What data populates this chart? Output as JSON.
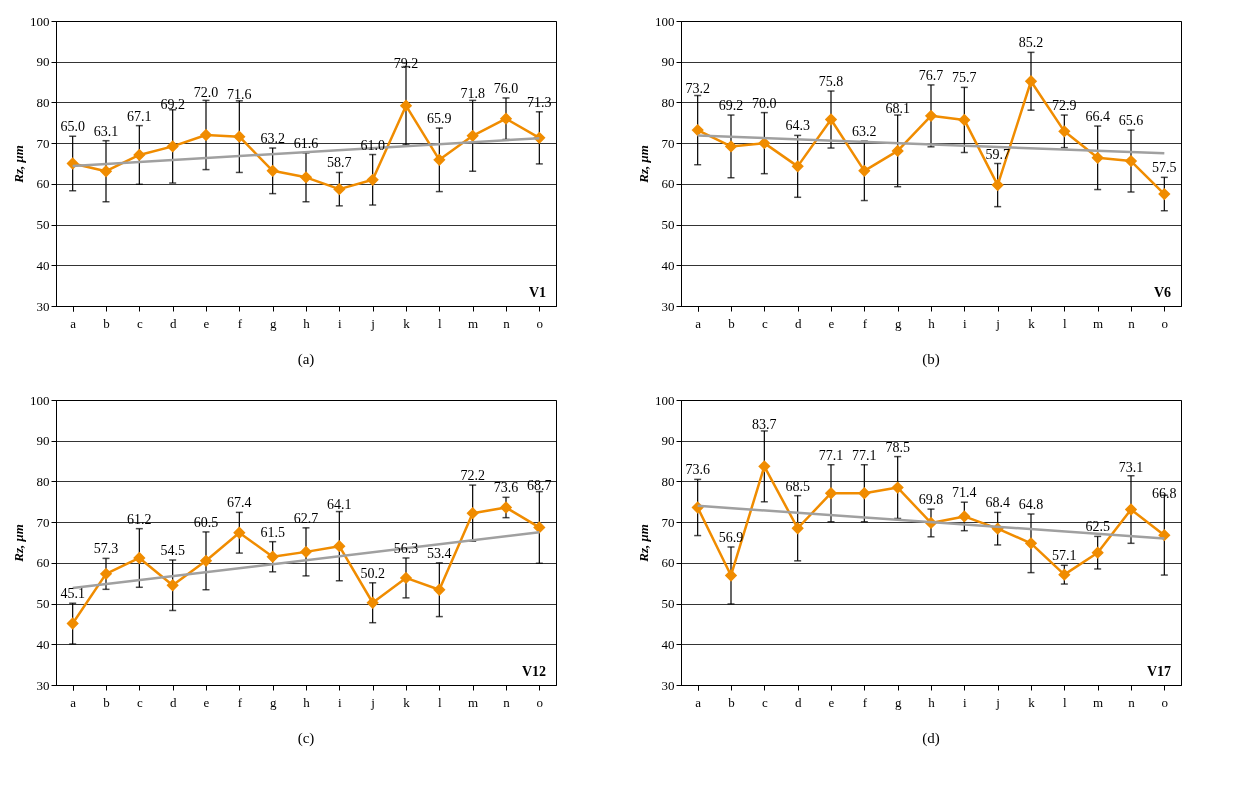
{
  "chart_data": [
    {
      "type": "line",
      "title": "(a)",
      "ylabel": "Rz, μm",
      "categories": [
        "a",
        "b",
        "c",
        "d",
        "e",
        "f",
        "g",
        "h",
        "i",
        "j",
        "k",
        "l",
        "m",
        "n",
        "o"
      ],
      "ylim": [
        30,
        100
      ],
      "yticks": [
        30,
        40,
        50,
        60,
        70,
        80,
        90,
        100
      ],
      "grid": "y",
      "marker": "diamond",
      "annotations": [
        "V1"
      ],
      "series": [
        {
          "color": "#f08c00",
          "values": [
            65.0,
            63.1,
            67.1,
            69.2,
            72.0,
            71.6,
            63.2,
            61.6,
            58.7,
            61.0,
            79.2,
            65.9,
            71.8,
            76.0,
            71.3
          ],
          "errors": [
            6.7,
            7.5,
            7.2,
            9,
            8.5,
            8.8,
            5.6,
            6,
            4.1,
            6.2,
            9.6,
            7.8,
            8.7,
            5.1,
            6.4
          ],
          "value_labels": [
            "65.0",
            "63.1",
            "67.1",
            "69.2",
            "72.0",
            "71.6",
            "63.2",
            "61.6",
            "58.7",
            "61.0",
            "79.2",
            "65.9",
            "71.8",
            "76.0",
            "71.3"
          ]
        },
        {
          "type": "line",
          "color": "#a0a0a0",
          "marker": "none",
          "x": [
            "a",
            "o"
          ],
          "values": [
            64.4,
            71.2
          ]
        }
      ]
    },
    {
      "type": "line",
      "title": "(b)",
      "ylabel": "Rz, μm",
      "categories": [
        "a",
        "b",
        "c",
        "d",
        "e",
        "f",
        "g",
        "h",
        "i",
        "j",
        "k",
        "l",
        "m",
        "n",
        "o"
      ],
      "ylim": [
        30,
        100
      ],
      "yticks": [
        30,
        40,
        50,
        60,
        70,
        80,
        90,
        100
      ],
      "grid": "y",
      "marker": "diamond",
      "annotations": [
        "V6"
      ],
      "series": [
        {
          "color": "#f08c00",
          "values": [
            73.2,
            69.2,
            70.0,
            64.3,
            75.8,
            63.2,
            68.1,
            76.7,
            75.7,
            59.7,
            85.2,
            72.9,
            66.4,
            65.6,
            57.5
          ],
          "errors": [
            8.5,
            7.7,
            7.5,
            7.6,
            7,
            7.3,
            8.8,
            7.6,
            8,
            5.3,
            7.1,
            4,
            7.8,
            7.6,
            4.1
          ],
          "value_labels": [
            "73.2",
            "69.2",
            "70.0",
            "64.3",
            "75.8",
            "63.2",
            "68.1",
            "76.7",
            "75.7",
            "59.7",
            "85.2",
            "72.9",
            "66.4",
            "65.6",
            "57.5"
          ]
        },
        {
          "type": "line",
          "color": "#a0a0a0",
          "marker": "none",
          "x": [
            "a",
            "o"
          ],
          "values": [
            71.9,
            67.5
          ]
        }
      ]
    },
    {
      "type": "line",
      "title": "(c)",
      "ylabel": "Rz, μm",
      "categories": [
        "a",
        "b",
        "c",
        "d",
        "e",
        "f",
        "g",
        "h",
        "i",
        "j",
        "k",
        "l",
        "m",
        "n",
        "o"
      ],
      "ylim": [
        30,
        100
      ],
      "yticks": [
        30,
        40,
        50,
        60,
        70,
        80,
        90,
        100
      ],
      "grid": "y",
      "marker": "diamond",
      "annotations": [
        "V12"
      ],
      "series": [
        {
          "color": "#f08c00",
          "values": [
            45.1,
            57.3,
            61.2,
            54.5,
            60.5,
            67.4,
            61.5,
            62.7,
            64.1,
            50.2,
            56.3,
            53.4,
            72.2,
            73.6,
            68.7
          ],
          "errors": [
            5,
            3.8,
            7.2,
            6.2,
            7.1,
            5,
            3.7,
            5.9,
            8.5,
            4.9,
            4.9,
            6.6,
            6.9,
            2.5,
            8.8
          ],
          "value_labels": [
            "45.1",
            "57.3",
            "61.2",
            "54.5",
            "60.5",
            "67.4",
            "61.5",
            "62.7",
            "64.1",
            "50.2",
            "56.3",
            "53.4",
            "72.2",
            "73.6",
            "68.7"
          ]
        },
        {
          "type": "line",
          "color": "#a0a0a0",
          "marker": "none",
          "x": [
            "a",
            "o"
          ],
          "values": [
            53.8,
            67.5
          ]
        }
      ]
    },
    {
      "type": "line",
      "title": "(d)",
      "ylabel": "Rz, μm",
      "categories": [
        "a",
        "b",
        "c",
        "d",
        "e",
        "f",
        "g",
        "h",
        "i",
        "j",
        "k",
        "l",
        "m",
        "n",
        "o"
      ],
      "ylim": [
        30,
        100
      ],
      "yticks": [
        30,
        40,
        50,
        60,
        70,
        80,
        90,
        100
      ],
      "grid": "y",
      "marker": "diamond",
      "annotations": [
        "V17"
      ],
      "series": [
        {
          "color": "#f08c00",
          "values": [
            73.6,
            56.9,
            83.7,
            68.5,
            77.1,
            77.1,
            78.5,
            69.8,
            71.4,
            68.4,
            64.8,
            57.1,
            62.5,
            73.1,
            66.8
          ],
          "errors": [
            6.9,
            7,
            8.7,
            8,
            7,
            7,
            7.6,
            3.4,
            3.5,
            4,
            7.2,
            2.3,
            4,
            8.3,
            9.8
          ],
          "value_labels": [
            "73.6",
            "56.9",
            "83.7",
            "68.5",
            "77.1",
            "77.1",
            "78.5",
            "69.8",
            "71.4",
            "68.4",
            "64.8",
            "57.1",
            "62.5",
            "73.1",
            "66.8"
          ]
        },
        {
          "type": "line",
          "color": "#a0a0a0",
          "marker": "none",
          "x": [
            "a",
            "o"
          ],
          "values": [
            74.0,
            66.0
          ]
        }
      ]
    }
  ]
}
